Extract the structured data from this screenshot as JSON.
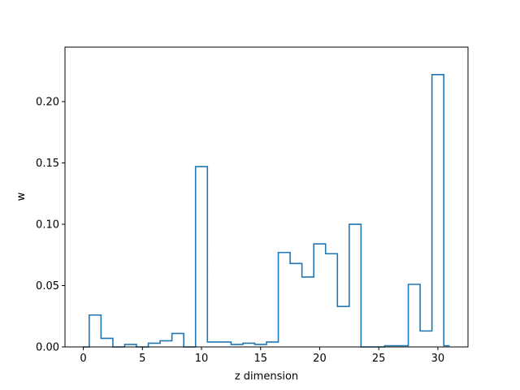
{
  "chart_data": {
    "type": "step",
    "title": "",
    "xlabel": "z dimension",
    "ylabel": "w",
    "xlim": [
      -1.55,
      32.55
    ],
    "ylim": [
      0,
      0.2444
    ],
    "x_ticks": [
      0,
      5,
      10,
      15,
      20,
      25,
      30
    ],
    "y_ticks": [
      0.0,
      0.05,
      0.1,
      0.15,
      0.2
    ],
    "x_tick_labels": [
      "0",
      "5",
      "10",
      "15",
      "20",
      "25",
      "30"
    ],
    "y_tick_labels": [
      "0.00",
      "0.05",
      "0.10",
      "0.15",
      "0.20"
    ],
    "step_where": "mid",
    "grid": false,
    "line_color": "#1f77b4",
    "series": [
      {
        "x": [
          0,
          1,
          2,
          3,
          4,
          5,
          6,
          7,
          8,
          9,
          10,
          11,
          12,
          13,
          14,
          15,
          16,
          17,
          18,
          19,
          20,
          21,
          22,
          23,
          24,
          25,
          26,
          27,
          28,
          29,
          30,
          31
        ],
        "values": [
          0.0,
          0.026,
          0.007,
          0.0,
          0.002,
          0.0,
          0.003,
          0.005,
          0.011,
          0.0,
          0.147,
          0.004,
          0.004,
          0.002,
          0.003,
          0.002,
          0.004,
          0.077,
          0.068,
          0.057,
          0.084,
          0.076,
          0.033,
          0.1,
          0.0,
          0.0,
          0.001,
          0.001,
          0.051,
          0.013,
          0.222,
          0.001
        ]
      }
    ]
  }
}
